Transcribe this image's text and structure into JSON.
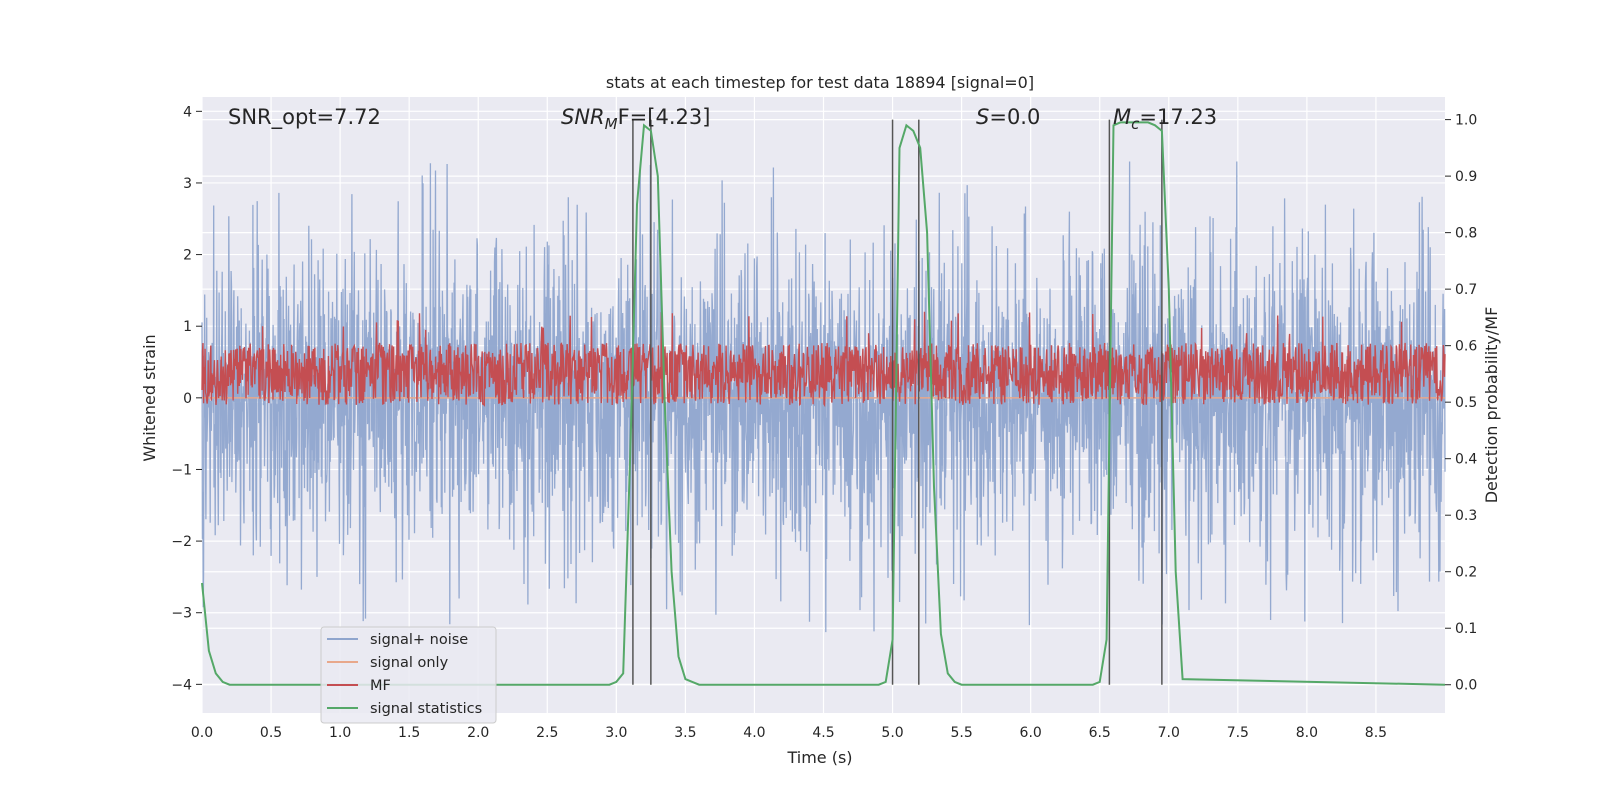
{
  "chart_data": {
    "type": "line",
    "title": "stats at each timestep for test data 18894 [signal=0]",
    "xlabel": "Time (s)",
    "ylabel": "Whitened strain",
    "y2label": "Detection probability/MF",
    "xlim": [
      0,
      9.0
    ],
    "ylim": [
      -4.4,
      4.2
    ],
    "y2lim": [
      -0.05,
      1.04
    ],
    "grid": true,
    "x_ticks": [
      0.0,
      0.5,
      1.0,
      1.5,
      2.0,
      2.5,
      3.0,
      3.5,
      4.0,
      4.5,
      5.0,
      5.5,
      6.0,
      6.5,
      7.0,
      7.5,
      8.0,
      8.5
    ],
    "x_tick_labels": [
      "0.0",
      "0.5",
      "1.0",
      "1.5",
      "2.0",
      "2.5",
      "3.0",
      "3.5",
      "4.0",
      "4.5",
      "5.0",
      "5.5",
      "6.0",
      "6.5",
      "7.0",
      "7.5",
      "8.0",
      "8.5"
    ],
    "y_ticks": [
      4,
      3,
      2,
      1,
      0,
      -1,
      -2,
      -3,
      -4
    ],
    "y_tick_labels": [
      "4",
      "3",
      "2",
      "1",
      "0",
      "−1",
      "−2",
      "−3",
      "−4"
    ],
    "y2_ticks": [
      1.0,
      0.9,
      0.8,
      0.7,
      0.6,
      0.5,
      0.4,
      0.3,
      0.2,
      0.1,
      0.0
    ],
    "y2_tick_labels": [
      "1.0",
      "0.9",
      "0.8",
      "0.7",
      "0.6",
      "0.5",
      "0.4",
      "0.3",
      "0.2",
      "0.1",
      "0.0"
    ],
    "legend_location": "lower-left",
    "series": [
      {
        "name": "signal+ noise",
        "axis": "left",
        "color": "#8fa5cd",
        "kind": "noise",
        "sigma": 1.0,
        "spike_max": 3.3
      },
      {
        "name": "signal only",
        "axis": "left",
        "color": "#e8a88b",
        "kind": "flat",
        "value": 0
      },
      {
        "name": "MF",
        "axis": "right",
        "color": "#c44e52",
        "kind": "band",
        "low": 0.5,
        "high": 0.6
      },
      {
        "name": "signal statistics",
        "axis": "right",
        "color": "#55a868",
        "x": [
          0.0,
          0.05,
          0.1,
          0.15,
          0.2,
          2.95,
          3.0,
          3.05,
          3.1,
          3.15,
          3.2,
          3.25,
          3.3,
          3.35,
          3.4,
          3.45,
          3.5,
          3.55,
          3.6,
          3.8,
          4.9,
          4.95,
          5.0,
          5.05,
          5.1,
          5.15,
          5.2,
          5.25,
          5.3,
          5.35,
          5.4,
          5.45,
          5.5,
          6.45,
          6.5,
          6.55,
          6.6,
          6.65,
          6.7,
          6.75,
          6.8,
          6.85,
          6.9,
          6.95,
          7.0,
          7.05,
          7.1,
          9.0
        ],
        "y": [
          0.18,
          0.06,
          0.02,
          0.005,
          0.0,
          0.0,
          0.005,
          0.02,
          0.4,
          0.85,
          0.99,
          0.98,
          0.9,
          0.5,
          0.2,
          0.05,
          0.01,
          0.005,
          0.0,
          0.0,
          0.0,
          0.005,
          0.08,
          0.95,
          0.99,
          0.98,
          0.95,
          0.8,
          0.35,
          0.09,
          0.02,
          0.005,
          0.0,
          0.0,
          0.005,
          0.08,
          0.99,
          0.995,
          0.995,
          0.995,
          0.995,
          0.995,
          0.99,
          0.98,
          0.7,
          0.2,
          0.01,
          0.0
        ]
      }
    ],
    "vlines": [
      3.12,
      3.25,
      5.0,
      5.19,
      6.57,
      6.95
    ],
    "annotations": [
      {
        "id": "snr-opt",
        "text": "SNR_opt=7.72"
      },
      {
        "id": "snr-mf",
        "text": "SNR",
        "sub": "M",
        "tail": "F=[4.23]"
      },
      {
        "id": "s-stat",
        "text": "S",
        "tail": "=0.0"
      },
      {
        "id": "mc",
        "text": "M",
        "sub": "c",
        "tail": "=17.23"
      }
    ]
  }
}
